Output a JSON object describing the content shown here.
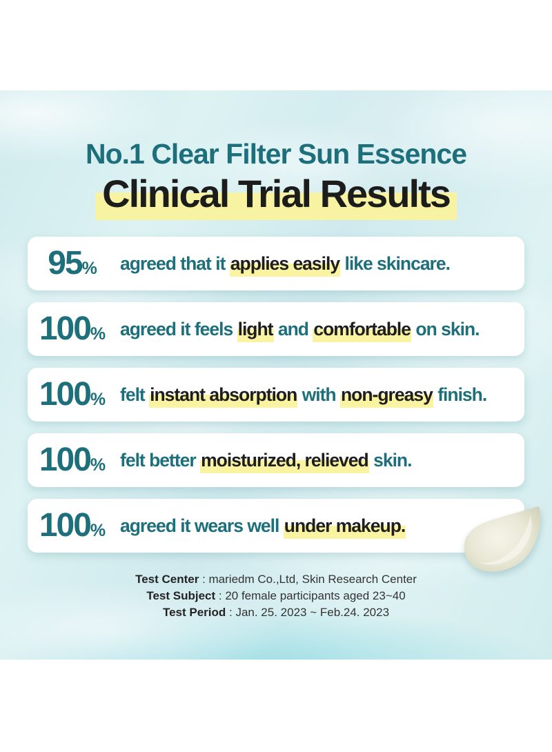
{
  "header": {
    "title_line1": "No.1 Clear Filter Sun Essence",
    "title_line2": "Clinical Trial Results"
  },
  "results": [
    {
      "percent": "95",
      "unit": "%",
      "segments": [
        {
          "text": "agreed that it ",
          "highlight": false
        },
        {
          "text": "applies easily",
          "highlight": true
        },
        {
          "text": " like skincare.",
          "highlight": false
        }
      ]
    },
    {
      "percent": "100",
      "unit": "%",
      "segments": [
        {
          "text": "agreed it feels ",
          "highlight": false
        },
        {
          "text": "light",
          "highlight": true
        },
        {
          "text": " and ",
          "highlight": false
        },
        {
          "text": "comfortable",
          "highlight": true
        },
        {
          "text": " on skin.",
          "highlight": false
        }
      ]
    },
    {
      "percent": "100",
      "unit": "%",
      "segments": [
        {
          "text": "felt ",
          "highlight": false
        },
        {
          "text": "instant absorption",
          "highlight": true
        },
        {
          "text": " with ",
          "highlight": false
        },
        {
          "text": "non-greasy",
          "highlight": true
        },
        {
          "text": " finish.",
          "highlight": false
        }
      ]
    },
    {
      "percent": "100",
      "unit": "%",
      "segments": [
        {
          "text": "felt better ",
          "highlight": false
        },
        {
          "text": "moisturized, relieved",
          "highlight": true
        },
        {
          "text": " skin.",
          "highlight": false
        }
      ]
    },
    {
      "percent": "100",
      "unit": "%",
      "segments": [
        {
          "text": "agreed it wears well ",
          "highlight": false
        },
        {
          "text": "under makeup.",
          "highlight": true
        }
      ]
    }
  ],
  "footer": {
    "lines": [
      {
        "label": "Test Center",
        "value": " : mariedm Co.,Ltd, Skin Research Center"
      },
      {
        "label": "Test Subject",
        "value": " : 20 female participants aged 23~40"
      },
      {
        "label": "Test Period",
        "value": " : Jan. 25. 2023 ~ Feb.24. 2023"
      }
    ]
  },
  "icons": {
    "swatch": "cream-swatch"
  },
  "colors": {
    "accent_teal": "#1d6f7b",
    "highlight_yellow": "#f8f3a2",
    "background_water": "#d9eff1",
    "card_white": "#ffffff",
    "dark_text": "#1e1e1c",
    "footer_text": "#333333",
    "swatch_cream": "#e9e8d6"
  },
  "layout_numbers": {
    "card_count": "5"
  }
}
